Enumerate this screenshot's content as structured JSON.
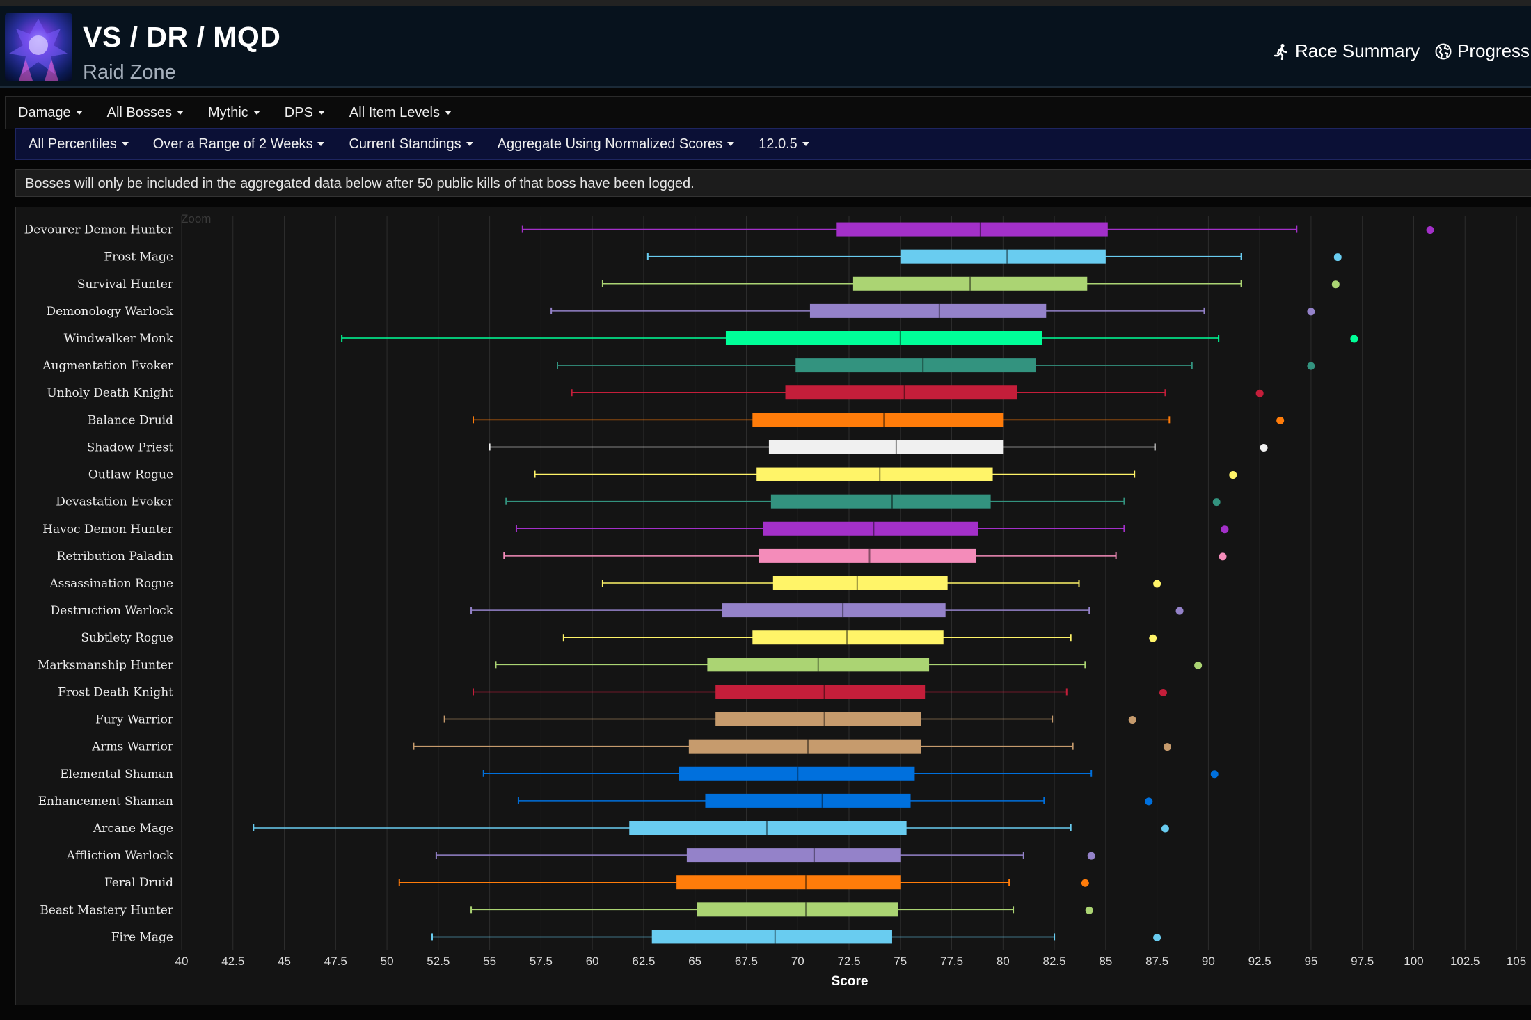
{
  "header": {
    "title": "VS / DR / MQD",
    "subtitle": "Raid Zone",
    "links": [
      {
        "label": "Race Summary",
        "icon": "runner-icon"
      },
      {
        "label": "Progress",
        "icon": "globe-icon"
      }
    ]
  },
  "filters_row1": [
    "Damage",
    "All Bosses",
    "Mythic",
    "DPS",
    "All Item Levels"
  ],
  "filters_row2": [
    "All Percentiles",
    "Over a Range of 2 Weeks",
    "Current Standings",
    "Aggregate Using Normalized Scores",
    "12.0.5"
  ],
  "notice": "Bosses will only be included in the aggregated data below after 50 public kills of that boss have been logged.",
  "chart_data": {
    "type": "boxplot",
    "orientation": "horizontal",
    "zoom_label": "Zoom",
    "xlabel": "Score",
    "xlim": [
      40,
      105
    ],
    "xticks": [
      40,
      42.5,
      45,
      47.5,
      50,
      52.5,
      55,
      57.5,
      60,
      62.5,
      65,
      67.5,
      70,
      72.5,
      75,
      77.5,
      80,
      82.5,
      85,
      87.5,
      90,
      92.5,
      95,
      97.5,
      100,
      102.5,
      105
    ],
    "grid": "vertical",
    "series": [
      {
        "name": "Devourer Demon Hunter",
        "color": "#a330c9",
        "min": 56.6,
        "q1": 71.9,
        "median": 78.9,
        "q3": 85.1,
        "max": 94.3,
        "outlier": 100.8
      },
      {
        "name": "Frost Mage",
        "color": "#69ccf0",
        "min": 62.7,
        "q1": 75.0,
        "median": 80.2,
        "q3": 85.0,
        "max": 91.6,
        "outlier": 96.3
      },
      {
        "name": "Survival Hunter",
        "color": "#abd473",
        "min": 60.5,
        "q1": 72.7,
        "median": 78.4,
        "q3": 84.1,
        "max": 91.6,
        "outlier": 96.2
      },
      {
        "name": "Demonology Warlock",
        "color": "#9482c9",
        "min": 58.0,
        "q1": 70.6,
        "median": 76.9,
        "q3": 82.1,
        "max": 89.8,
        "outlier": 95.0
      },
      {
        "name": "Windwalker Monk",
        "color": "#00ff98",
        "min": 47.8,
        "q1": 66.5,
        "median": 75.0,
        "q3": 81.9,
        "max": 90.5,
        "outlier": 97.1
      },
      {
        "name": "Augmentation Evoker",
        "color": "#33937f",
        "min": 58.3,
        "q1": 69.9,
        "median": 76.1,
        "q3": 81.6,
        "max": 89.2,
        "outlier": 95.0
      },
      {
        "name": "Unholy Death Knight",
        "color": "#c41e3a",
        "min": 59.0,
        "q1": 69.4,
        "median": 75.2,
        "q3": 80.7,
        "max": 87.9,
        "outlier": 92.5
      },
      {
        "name": "Balance Druid",
        "color": "#ff7c0a",
        "min": 54.2,
        "q1": 67.8,
        "median": 74.2,
        "q3": 80.0,
        "max": 88.1,
        "outlier": 93.5
      },
      {
        "name": "Shadow Priest",
        "color": "#f0f0f0",
        "min": 55.0,
        "q1": 68.6,
        "median": 74.8,
        "q3": 80.0,
        "max": 87.4,
        "outlier": 92.7
      },
      {
        "name": "Outlaw Rogue",
        "color": "#fff468",
        "min": 57.2,
        "q1": 68.0,
        "median": 74.0,
        "q3": 79.5,
        "max": 86.4,
        "outlier": 91.2
      },
      {
        "name": "Devastation Evoker",
        "color": "#33937f",
        "min": 55.8,
        "q1": 68.7,
        "median": 74.6,
        "q3": 79.4,
        "max": 85.9,
        "outlier": 90.4
      },
      {
        "name": "Havoc Demon Hunter",
        "color": "#a330c9",
        "min": 56.3,
        "q1": 68.3,
        "median": 73.7,
        "q3": 78.8,
        "max": 85.9,
        "outlier": 90.8
      },
      {
        "name": "Retribution Paladin",
        "color": "#f48cba",
        "min": 55.7,
        "q1": 68.1,
        "median": 73.5,
        "q3": 78.7,
        "max": 85.5,
        "outlier": 90.7
      },
      {
        "name": "Assassination Rogue",
        "color": "#fff468",
        "min": 60.5,
        "q1": 68.8,
        "median": 72.9,
        "q3": 77.3,
        "max": 83.7,
        "outlier": 87.5
      },
      {
        "name": "Destruction Warlock",
        "color": "#9482c9",
        "min": 54.1,
        "q1": 66.3,
        "median": 72.2,
        "q3": 77.2,
        "max": 84.2,
        "outlier": 88.6
      },
      {
        "name": "Subtlety Rogue",
        "color": "#fff468",
        "min": 58.6,
        "q1": 67.8,
        "median": 72.4,
        "q3": 77.1,
        "max": 83.3,
        "outlier": 87.3
      },
      {
        "name": "Marksmanship Hunter",
        "color": "#abd473",
        "min": 55.3,
        "q1": 65.6,
        "median": 71.0,
        "q3": 76.4,
        "max": 84.0,
        "outlier": 89.5
      },
      {
        "name": "Frost Death Knight",
        "color": "#c41e3a",
        "min": 54.2,
        "q1": 66.0,
        "median": 71.3,
        "q3": 76.2,
        "max": 83.1,
        "outlier": 87.8
      },
      {
        "name": "Fury Warrior",
        "color": "#c69b6d",
        "min": 52.8,
        "q1": 66.0,
        "median": 71.3,
        "q3": 76.0,
        "max": 82.4,
        "outlier": 86.3
      },
      {
        "name": "Arms Warrior",
        "color": "#c69b6d",
        "min": 51.3,
        "q1": 64.7,
        "median": 70.5,
        "q3": 76.0,
        "max": 83.4,
        "outlier": 88.0
      },
      {
        "name": "Elemental Shaman",
        "color": "#0070dd",
        "min": 54.7,
        "q1": 64.2,
        "median": 70.0,
        "q3": 75.7,
        "max": 84.3,
        "outlier": 90.3
      },
      {
        "name": "Enhancement Shaman",
        "color": "#0070dd",
        "min": 56.4,
        "q1": 65.5,
        "median": 71.2,
        "q3": 75.5,
        "max": 82.0,
        "outlier": 87.1
      },
      {
        "name": "Arcane Mage",
        "color": "#69ccf0",
        "min": 43.5,
        "q1": 61.8,
        "median": 68.5,
        "q3": 75.3,
        "max": 83.3,
        "outlier": 87.9
      },
      {
        "name": "Affliction Warlock",
        "color": "#9482c9",
        "min": 52.4,
        "q1": 64.6,
        "median": 70.8,
        "q3": 75.0,
        "max": 81.0,
        "outlier": 84.3
      },
      {
        "name": "Feral Druid",
        "color": "#ff7c0a",
        "min": 50.6,
        "q1": 64.1,
        "median": 70.4,
        "q3": 75.0,
        "max": 80.3,
        "outlier": 84.0
      },
      {
        "name": "Beast Mastery Hunter",
        "color": "#abd473",
        "min": 54.1,
        "q1": 65.1,
        "median": 70.4,
        "q3": 74.9,
        "max": 80.5,
        "outlier": 84.2
      },
      {
        "name": "Fire Mage",
        "color": "#69ccf0",
        "min": 52.2,
        "q1": 62.9,
        "median": 68.9,
        "q3": 74.6,
        "max": 82.5,
        "outlier": 87.5
      }
    ]
  }
}
